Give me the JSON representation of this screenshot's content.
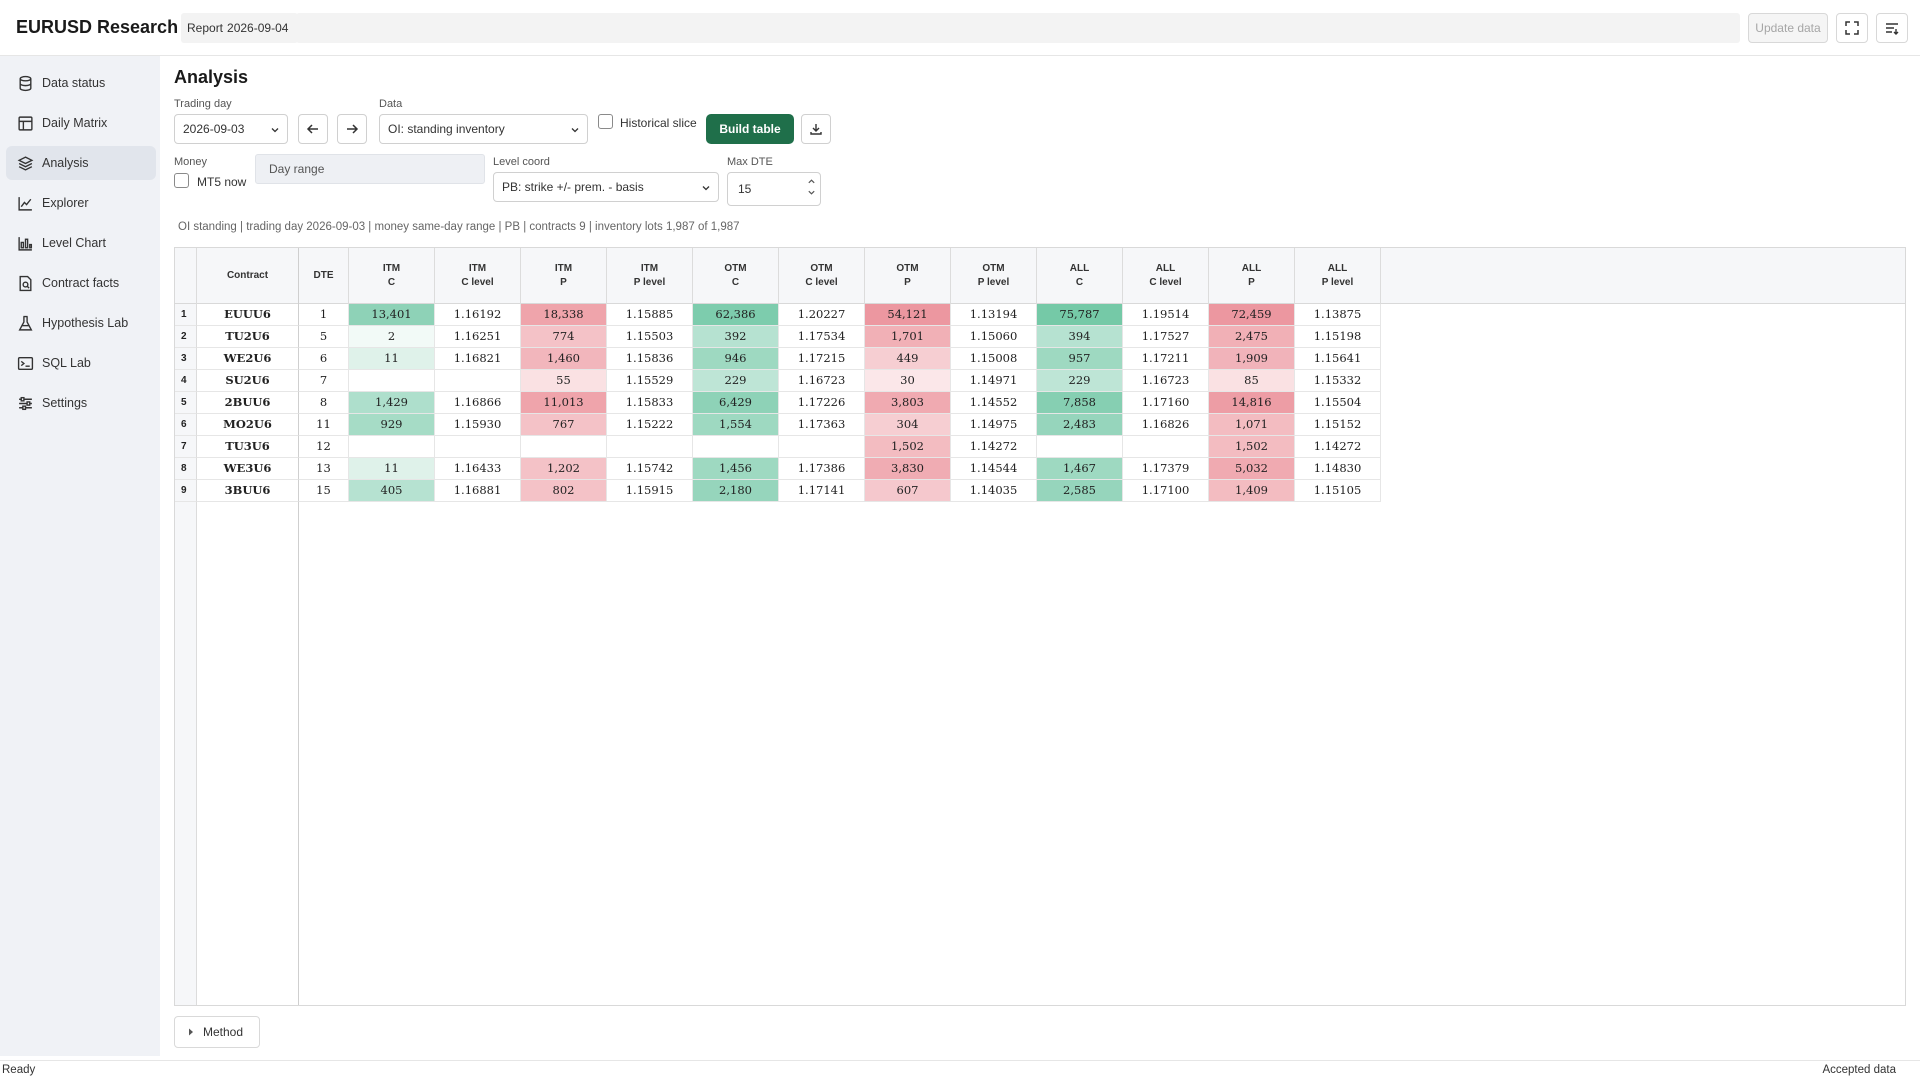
{
  "app": {
    "title": "EURUSD Research",
    "report_label": "Report",
    "report_date": "2026-09-04",
    "update_label": "Update data",
    "icons": {
      "fullscreen": "fullscreen-icon",
      "menu": "settings-sliders-icon"
    }
  },
  "sidebar": {
    "items": [
      {
        "label": "Data status",
        "icon": "database-icon",
        "active": false
      },
      {
        "label": "Daily Matrix",
        "icon": "table-icon",
        "active": false
      },
      {
        "label": "Analysis",
        "icon": "layers-icon",
        "active": true
      },
      {
        "label": "Explorer",
        "icon": "line-chart-icon",
        "active": false
      },
      {
        "label": "Level Chart",
        "icon": "bar-chart-icon",
        "active": false
      },
      {
        "label": "Contract facts",
        "icon": "document-search-icon",
        "active": false
      },
      {
        "label": "Hypothesis Lab",
        "icon": "flask-icon",
        "active": false
      },
      {
        "label": "SQL Lab",
        "icon": "terminal-icon",
        "active": false
      },
      {
        "label": "Settings",
        "icon": "sliders-icon",
        "active": false
      }
    ]
  },
  "analysis": {
    "title": "Analysis",
    "trading_day_label": "Trading day",
    "trading_day_value": "2026-09-03",
    "data_label": "Data",
    "data_value": "OI: standing inventory",
    "historical_slice_label": "Historical slice",
    "build_table_label": "Build table",
    "money_label": "Money",
    "mt5_now_label": "MT5 now",
    "day_range_label": "Day range",
    "level_coord_label": "Level coord",
    "level_coord_value": "PB: strike +/- prem. - basis",
    "max_dte_label": "Max DTE",
    "max_dte_value": "15",
    "summary": "OI standing | trading day 2026-09-03 | money same-day range | PB | contracts 9 | inventory lots 1,987 of 1,987"
  },
  "table": {
    "columns": [
      {
        "l1": "Contract",
        "l2": ""
      },
      {
        "l1": "DTE",
        "l2": ""
      },
      {
        "l1": "ITM",
        "l2": "C"
      },
      {
        "l1": "ITM",
        "l2": "C level"
      },
      {
        "l1": "ITM",
        "l2": "P"
      },
      {
        "l1": "ITM",
        "l2": "P level"
      },
      {
        "l1": "OTM",
        "l2": "C"
      },
      {
        "l1": "OTM",
        "l2": "C level"
      },
      {
        "l1": "OTM",
        "l2": "P"
      },
      {
        "l1": "OTM",
        "l2": "P level"
      },
      {
        "l1": "ALL",
        "l2": "C"
      },
      {
        "l1": "ALL",
        "l2": "C level"
      },
      {
        "l1": "ALL",
        "l2": "P"
      },
      {
        "l1": "ALL",
        "l2": "P level"
      }
    ],
    "rows": [
      {
        "idx": "1",
        "cells": [
          "EUUU6",
          "1",
          "13,401",
          "1.16192",
          "18,338",
          "1.15885",
          "62,386",
          "1.20227",
          "54,121",
          "1.13194",
          "75,787",
          "1.19514",
          "72,459",
          "1.13875"
        ],
        "shade": [
          0,
          0,
          0.7,
          0,
          0.75,
          0,
          0.8,
          0,
          0.85,
          0,
          0.85,
          0,
          0.85,
          0
        ]
      },
      {
        "idx": "2",
        "cells": [
          "TU2U6",
          "5",
          "2",
          "1.16251",
          "774",
          "1.15503",
          "392",
          "1.17534",
          "1,701",
          "1.15060",
          "394",
          "1.17527",
          "2,475",
          "1.15198"
        ],
        "shade": [
          0,
          0,
          0.08,
          0,
          0.5,
          0,
          0.45,
          0,
          0.65,
          0,
          0.45,
          0,
          0.65,
          0
        ]
      },
      {
        "idx": "3",
        "cells": [
          "WE2U6",
          "6",
          "11",
          "1.16821",
          "1,460",
          "1.15836",
          "946",
          "1.17215",
          "449",
          "1.15008",
          "957",
          "1.17211",
          "1,909",
          "1.15641"
        ],
        "shade": [
          0,
          0,
          0.2,
          0,
          0.6,
          0,
          0.6,
          0,
          0.4,
          0,
          0.6,
          0,
          0.62,
          0
        ]
      },
      {
        "idx": "4",
        "cells": [
          "SU2U6",
          "7",
          "",
          "",
          "55",
          "1.15529",
          "229",
          "1.16723",
          "30",
          "1.14971",
          "229",
          "1.16723",
          "85",
          "1.15332"
        ],
        "shade": [
          0,
          0,
          0,
          0,
          0.25,
          0,
          0.4,
          0,
          0.2,
          0,
          0.4,
          0,
          0.25,
          0
        ]
      },
      {
        "idx": "5",
        "cells": [
          "2BUU6",
          "8",
          "1,429",
          "1.16866",
          "11,013",
          "1.15833",
          "6,429",
          "1.17226",
          "3,803",
          "1.14552",
          "7,858",
          "1.17160",
          "14,816",
          "1.15504"
        ],
        "shade": [
          0,
          0,
          0.5,
          0,
          0.75,
          0,
          0.7,
          0,
          0.7,
          0,
          0.75,
          0,
          0.8,
          0
        ]
      },
      {
        "idx": "6",
        "cells": [
          "MO2U6",
          "11",
          "929",
          "1.15930",
          "767",
          "1.15222",
          "1,554",
          "1.17363",
          "304",
          "1.14975",
          "2,483",
          "1.16826",
          "1,071",
          "1.15152"
        ],
        "shade": [
          0,
          0,
          0.55,
          0,
          0.5,
          0,
          0.6,
          0,
          0.4,
          0,
          0.65,
          0,
          0.55,
          0
        ]
      },
      {
        "idx": "7",
        "cells": [
          "TU3U6",
          "12",
          "",
          "",
          "",
          "",
          "",
          "",
          "1,502",
          "1.14272",
          "",
          "",
          "1,502",
          "1.14272"
        ],
        "shade": [
          0,
          0,
          0,
          0,
          0,
          0,
          0,
          0,
          0.55,
          0,
          0,
          0,
          0.55,
          0
        ]
      },
      {
        "idx": "8",
        "cells": [
          "WE3U6",
          "13",
          "11",
          "1.16433",
          "1,202",
          "1.15742",
          "1,456",
          "1.17386",
          "3,830",
          "1.14544",
          "1,467",
          "1.17379",
          "5,032",
          "1.14830"
        ],
        "shade": [
          0,
          0,
          0.2,
          0,
          0.5,
          0,
          0.6,
          0,
          0.68,
          0,
          0.6,
          0,
          0.7,
          0
        ]
      },
      {
        "idx": "9",
        "cells": [
          "3BUU6",
          "15",
          "405",
          "1.16881",
          "802",
          "1.15915",
          "2,180",
          "1.17141",
          "607",
          "1.14035",
          "2,585",
          "1.17100",
          "1,409",
          "1.15105"
        ],
        "shade": [
          0,
          0,
          0.45,
          0,
          0.5,
          0,
          0.65,
          0,
          0.45,
          0,
          0.65,
          0,
          0.55,
          0
        ]
      }
    ]
  },
  "colors": {
    "call": "#5dbf98",
    "put": "#e9858f",
    "build": "#1f6f4a"
  },
  "method_label": "Method",
  "status": {
    "left": "Ready",
    "right": "Accepted data"
  }
}
